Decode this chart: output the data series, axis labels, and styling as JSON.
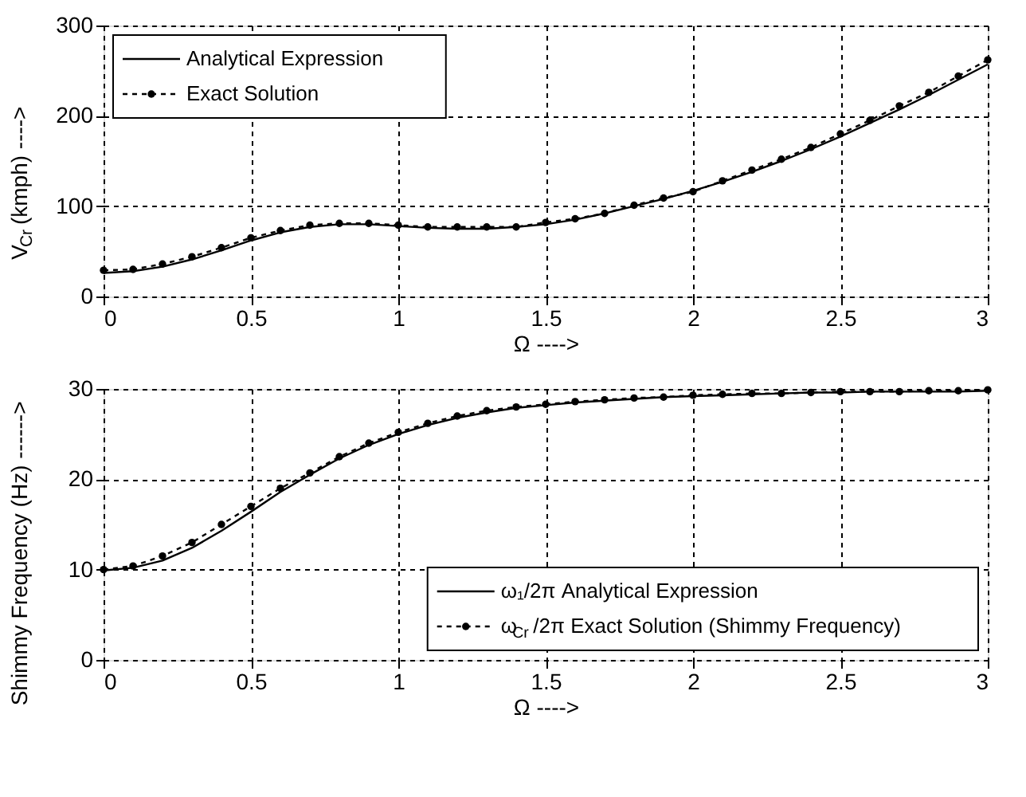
{
  "chart_data": [
    {
      "type": "line",
      "xlabel": "Ω ---->",
      "ylabel": "V$_{Cr}$ (kmph) ---->",
      "xlim": [
        0,
        3
      ],
      "ylim": [
        0,
        300
      ],
      "xticks": [
        0,
        0.5,
        1,
        1.5,
        2,
        2.5,
        3
      ],
      "yticks": [
        0,
        100,
        200,
        300
      ],
      "grid": true,
      "legend": "top left",
      "x": [
        0,
        0.1,
        0.2,
        0.3,
        0.4,
        0.5,
        0.6,
        0.7,
        0.8,
        0.9,
        1.0,
        1.1,
        1.2,
        1.3,
        1.4,
        1.5,
        1.6,
        1.7,
        1.8,
        1.9,
        2.0,
        2.1,
        2.2,
        2.3,
        2.4,
        2.5,
        2.6,
        2.7,
        2.8,
        2.9,
        3.0
      ],
      "series": [
        {
          "name": "Analytical Expression",
          "color": "#000000",
          "line_style": "solid",
          "marker": "none",
          "values": [
            26,
            28,
            33,
            41,
            51,
            62,
            71,
            77,
            80,
            80,
            78,
            76,
            75,
            75,
            77,
            80,
            85,
            92,
            100,
            108,
            117,
            127,
            138,
            150,
            163,
            177,
            192,
            207,
            223,
            240,
            257
          ]
        },
        {
          "name": "Exact Solution",
          "color": "#000000",
          "line_style": "dashed",
          "marker": "circle",
          "values": [
            29,
            30,
            36,
            44,
            54,
            65,
            73,
            79,
            81,
            81,
            79,
            77,
            77,
            77,
            77,
            82,
            86,
            92,
            101,
            109,
            116,
            128,
            140,
            152,
            165,
            180,
            195,
            211,
            226,
            244,
            262
          ]
        }
      ]
    },
    {
      "type": "line",
      "xlabel": "Ω ---->",
      "ylabel": "Shimmy Frequency (Hz) ------>",
      "xlim": [
        0,
        3
      ],
      "ylim": [
        0,
        30
      ],
      "xticks": [
        0,
        0.5,
        1,
        1.5,
        2,
        2.5,
        3
      ],
      "yticks": [
        0,
        10,
        20,
        30
      ],
      "grid": true,
      "legend": "bottom right",
      "x": [
        0,
        0.1,
        0.2,
        0.3,
        0.4,
        0.5,
        0.6,
        0.7,
        0.8,
        0.9,
        1.0,
        1.1,
        1.2,
        1.3,
        1.4,
        1.5,
        1.6,
        1.7,
        1.8,
        1.9,
        2.0,
        2.1,
        2.2,
        2.3,
        2.4,
        2.5,
        2.6,
        2.7,
        2.8,
        2.9,
        3.0
      ],
      "series": [
        {
          "name": "ω₁/2π Analytical Expression",
          "color": "#000000",
          "line_style": "solid",
          "marker": "none",
          "values": [
            9.9,
            10.2,
            11,
            12.4,
            14.3,
            16.4,
            18.6,
            20.5,
            22.3,
            23.8,
            25,
            26,
            26.8,
            27.4,
            27.9,
            28.2,
            28.5,
            28.7,
            28.9,
            29.1,
            29.2,
            29.3,
            29.4,
            29.5,
            29.6,
            29.6,
            29.7,
            29.7,
            29.7,
            29.7,
            29.8
          ]
        },
        {
          "name": "ω$_{Cr}$/2π Exact Solution (Shimmy Frequency)",
          "color": "#000000",
          "line_style": "dashed",
          "marker": "circle",
          "values": [
            10,
            10.4,
            11.5,
            13,
            15,
            17,
            19,
            20.7,
            22.5,
            24,
            25.2,
            26.2,
            27,
            27.6,
            28,
            28.3,
            28.6,
            28.8,
            29,
            29.1,
            29.3,
            29.4,
            29.5,
            29.5,
            29.6,
            29.7,
            29.7,
            29.7,
            29.8,
            29.8,
            29.9
          ]
        }
      ]
    }
  ]
}
